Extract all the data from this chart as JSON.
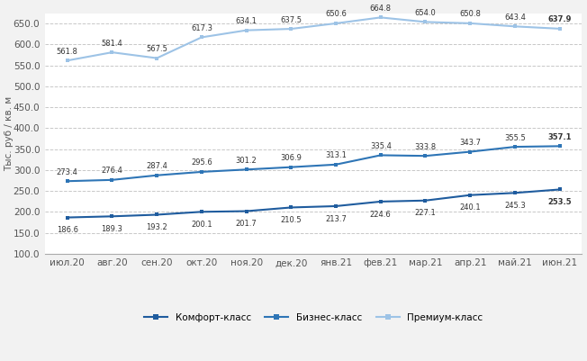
{
  "categories": [
    "июл.20",
    "авг.20",
    "сен.20",
    "окт.20",
    "ноя.20",
    "дек.20",
    "янв.21",
    "фев.21",
    "мар.21",
    "апр.21",
    "май.21",
    "июн.21"
  ],
  "comfort": [
    186.6,
    189.3,
    193.2,
    200.1,
    201.7,
    210.5,
    213.7,
    224.6,
    227.1,
    240.1,
    245.3,
    253.5
  ],
  "business": [
    273.4,
    276.4,
    287.4,
    295.6,
    301.2,
    306.9,
    313.1,
    335.4,
    333.8,
    343.7,
    355.5,
    357.1
  ],
  "premium": [
    561.8,
    581.4,
    567.5,
    617.3,
    634.1,
    637.5,
    650.6,
    664.8,
    654.0,
    650.8,
    643.4,
    637.9
  ],
  "comfort_color": "#1f5c9e",
  "business_color": "#2e75b6",
  "premium_color": "#9dc3e6",
  "ylim_min": 100.0,
  "ylim_max": 675.0,
  "yticks": [
    100.0,
    150.0,
    200.0,
    250.0,
    300.0,
    350.0,
    400.0,
    450.0,
    500.0,
    550.0,
    600.0,
    650.0
  ],
  "ylabel": "Тыс. руб / кв. м",
  "legend_comfort": "Комфорт-класс",
  "legend_business": "Бизнес-класс",
  "legend_premium": "Премиум-класс",
  "bg_color": "#f2f2f2",
  "plot_bg_color": "#ffffff",
  "grid_color": "#c8c8c8"
}
